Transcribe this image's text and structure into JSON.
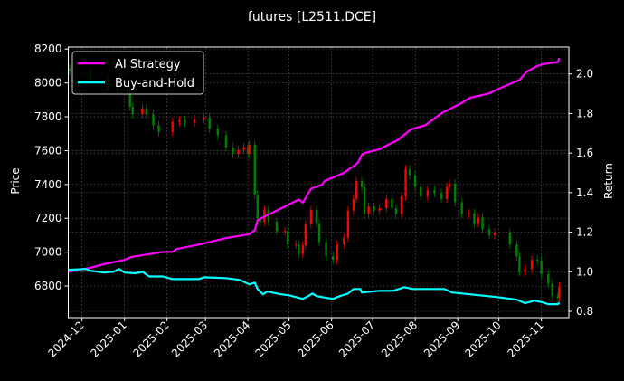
{
  "chart_data": {
    "type": "line",
    "title": "futures [L2511.DCE]",
    "xlabel": "",
    "ylabel": "Price",
    "ylabel_right": "Return",
    "xlim": [
      "2024-11-21",
      "2025-11-21"
    ],
    "ylim": [
      6613,
      8212
    ],
    "ylim_right": [
      0.768,
      2.136
    ],
    "grid": true,
    "legend_position": "top-left",
    "x_ticks": [
      "2024-12",
      "2025-01",
      "2025-02",
      "2025-03",
      "2025-04",
      "2025-05",
      "2025-06",
      "2025-07",
      "2025-08",
      "2025-09",
      "2025-10",
      "2025-11"
    ],
    "y_ticks": [
      "6800",
      "7000",
      "7200",
      "7400",
      "7600",
      "7800",
      "8000",
      "8200"
    ],
    "y_ticks_right": [
      "0.8",
      "1.0",
      "1.2",
      "1.4",
      "1.6",
      "1.8",
      "2.0"
    ],
    "colors": {
      "up": "#ff0000",
      "down": "#008000",
      "ai": "#ff00ff",
      "bh": "#00ffff"
    },
    "price_close": [
      [
        "2024-11-22",
        8070
      ],
      [
        "2024-12-07",
        8020
      ],
      [
        "2024-12-20",
        7980
      ],
      [
        "2024-12-27",
        7960
      ],
      [
        "2025-01-03",
        7955
      ],
      [
        "2025-01-05",
        7860
      ],
      [
        "2025-01-07",
        7815
      ],
      [
        "2025-01-14",
        7850
      ],
      [
        "2025-01-17",
        7815
      ],
      [
        "2025-01-22",
        7750
      ],
      [
        "2025-01-26",
        7710
      ],
      [
        "2025-02-05",
        7770
      ],
      [
        "2025-02-10",
        7780
      ],
      [
        "2025-02-14",
        7765
      ],
      [
        "2025-02-21",
        7785
      ],
      [
        "2025-02-28",
        7795
      ],
      [
        "2025-03-04",
        7730
      ],
      [
        "2025-03-10",
        7690
      ],
      [
        "2025-03-16",
        7620
      ],
      [
        "2025-03-21",
        7580
      ],
      [
        "2025-03-25",
        7605
      ],
      [
        "2025-03-29",
        7620
      ],
      [
        "2025-04-01",
        7580
      ],
      [
        "2025-04-02",
        7635
      ],
      [
        "2025-04-06",
        7340
      ],
      [
        "2025-04-08",
        7200
      ],
      [
        "2025-04-10",
        7180
      ],
      [
        "2025-04-13",
        7250
      ],
      [
        "2025-04-16",
        7180
      ],
      [
        "2025-04-22",
        7125
      ],
      [
        "2025-04-28",
        7125
      ],
      [
        "2025-04-30",
        7045
      ],
      [
        "2025-05-06",
        7045
      ],
      [
        "2025-05-08",
        6990
      ],
      [
        "2025-05-11",
        7040
      ],
      [
        "2025-05-13",
        7165
      ],
      [
        "2025-05-17",
        7250
      ],
      [
        "2025-05-21",
        7170
      ],
      [
        "2025-05-23",
        7060
      ],
      [
        "2025-05-28",
        6975
      ],
      [
        "2025-06-02",
        6955
      ],
      [
        "2025-06-05",
        7045
      ],
      [
        "2025-06-10",
        7085
      ],
      [
        "2025-06-13",
        7245
      ],
      [
        "2025-06-17",
        7315
      ],
      [
        "2025-06-19",
        7420
      ],
      [
        "2025-06-23",
        7385
      ],
      [
        "2025-06-25",
        7225
      ],
      [
        "2025-06-28",
        7270
      ],
      [
        "2025-07-02",
        7245
      ],
      [
        "2025-07-06",
        7260
      ],
      [
        "2025-07-11",
        7315
      ],
      [
        "2025-07-15",
        7260
      ],
      [
        "2025-07-18",
        7225
      ],
      [
        "2025-07-22",
        7330
      ],
      [
        "2025-07-25",
        7490
      ],
      [
        "2025-07-28",
        7455
      ],
      [
        "2025-08-01",
        7385
      ],
      [
        "2025-08-05",
        7330
      ],
      [
        "2025-08-10",
        7365
      ],
      [
        "2025-08-15",
        7350
      ],
      [
        "2025-08-20",
        7315
      ],
      [
        "2025-08-24",
        7385
      ],
      [
        "2025-08-26",
        7405
      ],
      [
        "2025-08-30",
        7295
      ],
      [
        "2025-09-04",
        7225
      ],
      [
        "2025-09-09",
        7230
      ],
      [
        "2025-09-13",
        7170
      ],
      [
        "2025-09-16",
        7205
      ],
      [
        "2025-09-19",
        7135
      ],
      [
        "2025-09-24",
        7100
      ],
      [
        "2025-09-28",
        7115
      ],
      [
        "2025-10-09",
        7045
      ],
      [
        "2025-10-14",
        6975
      ],
      [
        "2025-10-16",
        6885
      ],
      [
        "2025-10-20",
        6900
      ],
      [
        "2025-10-25",
        6955
      ],
      [
        "2025-10-29",
        6950
      ],
      [
        "2025-11-01",
        6870
      ],
      [
        "2025-11-06",
        6815
      ],
      [
        "2025-11-09",
        6740
      ],
      [
        "2025-11-13",
        6730
      ],
      [
        "2025-11-14",
        6795
      ]
    ],
    "series": [
      {
        "name": "AI Strategy",
        "axis": "right",
        "points": [
          [
            "2024-11-21",
            1.0
          ],
          [
            "2024-12-07",
            1.02
          ],
          [
            "2024-12-18",
            1.04
          ],
          [
            "2025-01-01",
            1.06
          ],
          [
            "2025-01-06",
            1.075
          ],
          [
            "2025-01-29",
            1.1
          ],
          [
            "2025-02-05",
            1.1
          ],
          [
            "2025-02-08",
            1.115
          ],
          [
            "2025-02-26",
            1.14
          ],
          [
            "2025-03-16",
            1.17
          ],
          [
            "2025-04-02",
            1.19
          ],
          [
            "2025-04-06",
            1.21
          ],
          [
            "2025-04-08",
            1.26
          ],
          [
            "2025-04-12",
            1.275
          ],
          [
            "2025-04-25",
            1.32
          ],
          [
            "2025-05-08",
            1.365
          ],
          [
            "2025-05-11",
            1.35
          ],
          [
            "2025-05-17",
            1.42
          ],
          [
            "2025-05-25",
            1.44
          ],
          [
            "2025-05-27",
            1.46
          ],
          [
            "2025-06-10",
            1.5
          ],
          [
            "2025-06-20",
            1.55
          ],
          [
            "2025-06-23",
            1.59
          ],
          [
            "2025-06-25",
            1.6
          ],
          [
            "2025-07-06",
            1.62
          ],
          [
            "2025-07-19",
            1.665
          ],
          [
            "2025-07-29",
            1.72
          ],
          [
            "2025-08-08",
            1.74
          ],
          [
            "2025-08-21",
            1.805
          ],
          [
            "2025-09-03",
            1.85
          ],
          [
            "2025-09-10",
            1.88
          ],
          [
            "2025-09-23",
            1.9
          ],
          [
            "2025-10-06",
            1.94
          ],
          [
            "2025-10-16",
            1.97
          ],
          [
            "2025-10-21",
            2.01
          ],
          [
            "2025-10-29",
            2.04
          ],
          [
            "2025-11-02",
            2.05
          ],
          [
            "2025-11-13",
            2.06
          ],
          [
            "2025-11-14",
            2.08
          ]
        ]
      },
      {
        "name": "Buy-and-Hold",
        "axis": "right",
        "points": [
          [
            "2024-11-21",
            1.01
          ],
          [
            "2024-12-04",
            1.014
          ],
          [
            "2024-12-07",
            1.005
          ],
          [
            "2024-12-17",
            0.996
          ],
          [
            "2024-12-24",
            1.0
          ],
          [
            "2024-12-28",
            1.014
          ],
          [
            "2025-01-01",
            0.996
          ],
          [
            "2025-01-09",
            0.992
          ],
          [
            "2025-01-14",
            1.0
          ],
          [
            "2025-01-19",
            0.976
          ],
          [
            "2025-01-29",
            0.976
          ],
          [
            "2025-02-05",
            0.963
          ],
          [
            "2025-02-24",
            0.963
          ],
          [
            "2025-02-28",
            0.972
          ],
          [
            "2025-03-16",
            0.968
          ],
          [
            "2025-03-26",
            0.959
          ],
          [
            "2025-04-02",
            0.936
          ],
          [
            "2025-04-06",
            0.945
          ],
          [
            "2025-04-08",
            0.913
          ],
          [
            "2025-04-12",
            0.886
          ],
          [
            "2025-04-15",
            0.9
          ],
          [
            "2025-04-25",
            0.886
          ],
          [
            "2025-05-01",
            0.881
          ],
          [
            "2025-05-08",
            0.868
          ],
          [
            "2025-05-11",
            0.863
          ],
          [
            "2025-05-15",
            0.877
          ],
          [
            "2025-05-18",
            0.89
          ],
          [
            "2025-05-21",
            0.877
          ],
          [
            "2025-05-28",
            0.868
          ],
          [
            "2025-06-02",
            0.863
          ],
          [
            "2025-06-07",
            0.877
          ],
          [
            "2025-06-13",
            0.89
          ],
          [
            "2025-06-17",
            0.913
          ],
          [
            "2025-06-22",
            0.913
          ],
          [
            "2025-06-23",
            0.895
          ],
          [
            "2025-07-06",
            0.904
          ],
          [
            "2025-07-16",
            0.904
          ],
          [
            "2025-07-24",
            0.922
          ],
          [
            "2025-07-30",
            0.913
          ],
          [
            "2025-08-22",
            0.913
          ],
          [
            "2025-08-28",
            0.895
          ],
          [
            "2025-09-17",
            0.881
          ],
          [
            "2025-09-30",
            0.872
          ],
          [
            "2025-10-14",
            0.859
          ],
          [
            "2025-10-20",
            0.841
          ],
          [
            "2025-10-27",
            0.854
          ],
          [
            "2025-11-02",
            0.845
          ],
          [
            "2025-11-06",
            0.836
          ],
          [
            "2025-11-13",
            0.836
          ],
          [
            "2025-11-14",
            0.845
          ]
        ]
      }
    ]
  }
}
